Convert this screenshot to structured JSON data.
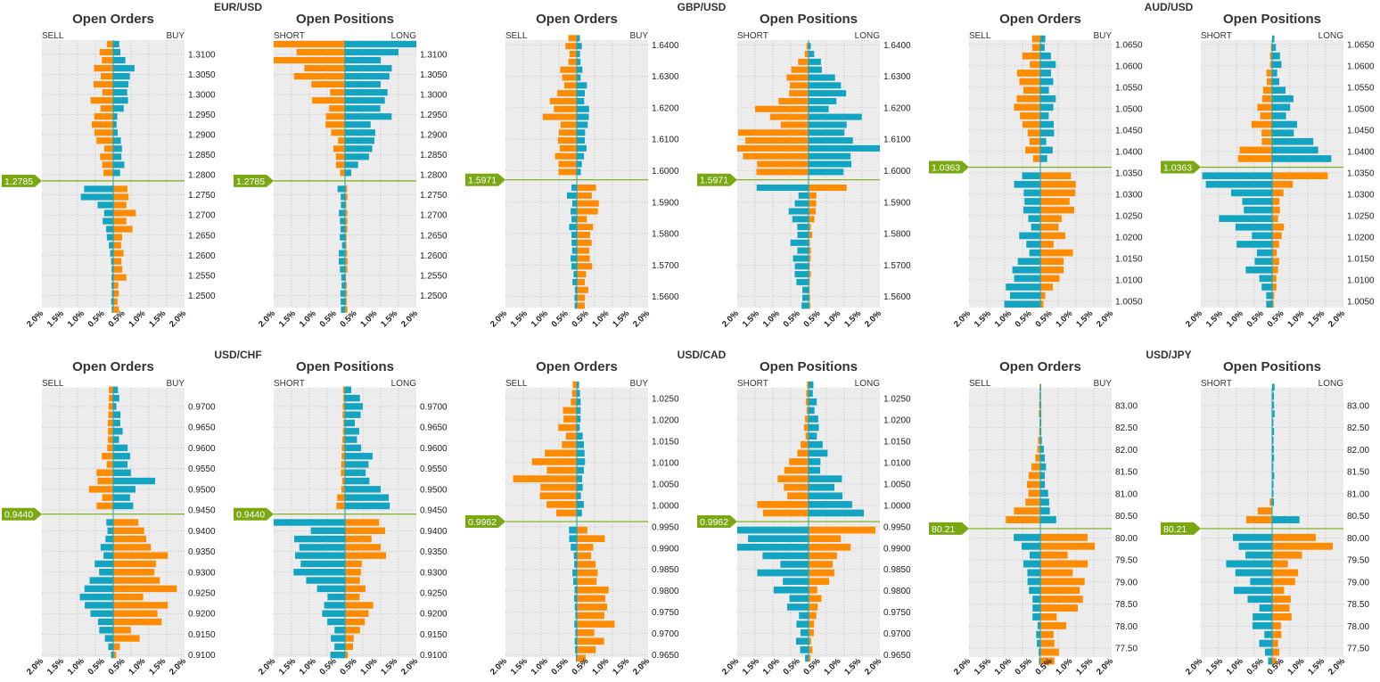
{
  "colors": {
    "orange": "#ff8c00",
    "teal": "#12a4c0",
    "green": "#7aa813",
    "panel_bg": "#ececec"
  },
  "labels": {
    "orders_title": "Open Orders",
    "positions_title": "Open Positions",
    "sell": "SELL",
    "buy": "BUY",
    "short": "SHORT",
    "long": "LONG"
  },
  "xticks": [
    "2.0%",
    "1.5%",
    "1.0%",
    "0.5%",
    "0.5%",
    "1.0%",
    "1.5%",
    "2.0%"
  ],
  "chart_data": [
    {
      "pair": "EUR/USD",
      "current_price": "1.2785",
      "price": 1.2785,
      "ylim": [
        1.247,
        1.3135
      ],
      "step": 0.002,
      "ticks": [
        "1.3100",
        "1.3050",
        "1.3000",
        "1.2950",
        "1.2900",
        "1.2850",
        "1.2800",
        "1.2750",
        "1.2700",
        "1.2650",
        "1.2600",
        "1.2550",
        "1.2500"
      ],
      "orders_shape": {
        "above": [
          [
            0,
            0.2,
            0.25
          ],
          [
            0.45,
            0.5,
            0.12
          ],
          [
            0.75,
            0.45,
            0.55
          ],
          [
            1,
            0.25,
            0.2
          ]
        ],
        "below": [
          [
            0,
            1.2,
            0.35
          ],
          [
            0.2,
            0.3,
            0.5
          ],
          [
            0.6,
            0.05,
            0.3
          ],
          [
            1,
            0.05,
            0.2
          ]
        ]
      },
      "positions_shape": {
        "above": [
          [
            0,
            0.1,
            0.1
          ],
          [
            0.3,
            0.35,
            0.8
          ],
          [
            0.7,
            0.8,
            1.1
          ],
          [
            0.9,
            1.8,
            1.0
          ],
          [
            1,
            2.0,
            2.0
          ]
        ],
        "below": [
          [
            0,
            2.0,
            2.0
          ],
          [
            0.03,
            0.2,
            0.05
          ],
          [
            1,
            0.1,
            0.05
          ]
        ]
      }
    },
    {
      "pair": "GBP/USD",
      "current_price": "1.5971",
      "price": 1.5971,
      "ylim": [
        1.5565,
        1.6415
      ],
      "step": 0.0025,
      "ticks": [
        "1.6400",
        "1.6300",
        "1.6200",
        "1.6100",
        "1.6000",
        "1.5900",
        "1.5800",
        "1.5700",
        "1.5600"
      ],
      "orders_shape": {
        "above": [
          [
            0,
            0.4,
            0.15
          ],
          [
            0.4,
            0.7,
            0.3
          ],
          [
            0.7,
            0.5,
            0.2
          ],
          [
            1,
            0.2,
            0.1
          ]
        ],
        "below": [
          [
            0,
            0.2,
            0.6
          ],
          [
            0.4,
            0.2,
            0.3
          ],
          [
            0.8,
            0.1,
            0.4
          ],
          [
            1,
            0.05,
            0.2
          ]
        ]
      },
      "positions_shape": {
        "above": [
          [
            0,
            1.2,
            1.0
          ],
          [
            0.2,
            1.8,
            1.5
          ],
          [
            0.6,
            0.8,
            0.8
          ],
          [
            0.9,
            0.1,
            0.1
          ],
          [
            1,
            0.0,
            0.0
          ]
        ],
        "below": [
          [
            0,
            2.0,
            2.0
          ],
          [
            0.1,
            0.5,
            0.2
          ],
          [
            0.5,
            0.4,
            0.05
          ],
          [
            1,
            0.2,
            0.05
          ]
        ]
      }
    },
    {
      "pair": "AUD/USD",
      "current_price": "1.0363",
      "price": 1.0363,
      "ylim": [
        1.0035,
        1.066
      ],
      "step": 0.002,
      "ticks": [
        "1.0650",
        "1.0600",
        "1.0550",
        "1.0500",
        "1.0450",
        "1.0400",
        "1.0350",
        "1.0300",
        "1.0250",
        "1.0200",
        "1.0150",
        "1.0100",
        "1.0050"
      ],
      "orders_shape": {
        "above": [
          [
            0,
            0.3,
            0.2
          ],
          [
            0.5,
            0.6,
            0.4
          ],
          [
            0.8,
            0.5,
            0.3
          ],
          [
            1,
            0.2,
            0.1
          ]
        ],
        "below": [
          [
            0,
            0.6,
            0.9
          ],
          [
            0.3,
            0.4,
            0.8
          ],
          [
            0.7,
            0.5,
            0.6
          ],
          [
            1,
            0.8,
            0.1
          ]
        ]
      },
      "positions_shape": {
        "above": [
          [
            0,
            1.0,
            2.0
          ],
          [
            0.2,
            0.5,
            1.0
          ],
          [
            0.6,
            0.2,
            0.3
          ],
          [
            1,
            0.0,
            0.1
          ]
        ],
        "below": [
          [
            0,
            2.0,
            2.0
          ],
          [
            0.2,
            1.4,
            0.3
          ],
          [
            0.6,
            0.8,
            0.2
          ],
          [
            1,
            0.2,
            0.05
          ]
        ]
      }
    },
    {
      "pair": "USD/CHF",
      "current_price": "0.9440",
      "price": 0.944,
      "ylim": [
        0.9095,
        0.9745
      ],
      "step": 0.002,
      "ticks": [
        "0.9700",
        "0.9650",
        "0.9600",
        "0.9550",
        "0.9500",
        "0.9450",
        "0.9400",
        "0.9350",
        "0.9300",
        "0.9250",
        "0.9200",
        "0.9150",
        "0.9100"
      ],
      "orders_shape": {
        "above": [
          [
            0,
            0.5,
            0.4
          ],
          [
            0.2,
            0.5,
            1.0
          ],
          [
            0.5,
            0.2,
            0.3
          ],
          [
            1,
            0.1,
            0.1
          ]
        ],
        "below": [
          [
            0,
            0.2,
            0.6
          ],
          [
            0.3,
            0.3,
            1.2
          ],
          [
            0.7,
            0.8,
            1.3
          ],
          [
            1,
            0.05,
            0.1
          ]
        ]
      },
      "positions_shape": {
        "above": [
          [
            0,
            0.2,
            2.0
          ],
          [
            0.3,
            0.1,
            0.6
          ],
          [
            0.7,
            0.05,
            0.5
          ],
          [
            1,
            0.05,
            0.3
          ]
        ],
        "below": [
          [
            0,
            2.0,
            1.5
          ],
          [
            0.3,
            1.3,
            0.9
          ],
          [
            0.7,
            0.6,
            0.5
          ],
          [
            1,
            0.3,
            0.1
          ]
        ]
      }
    },
    {
      "pair": "USD/CAD",
      "current_price": "0.9962",
      "price": 0.9962,
      "ylim": [
        0.9645,
        1.0275
      ],
      "step": 0.002,
      "ticks": [
        "1.0250",
        "1.0200",
        "1.0150",
        "1.0100",
        "1.0050",
        "1.0000",
        "0.9950",
        "0.9900",
        "0.9850",
        "0.9800",
        "0.9750",
        "0.9700",
        "0.9650"
      ],
      "orders_shape": {
        "above": [
          [
            0,
            0.3,
            0.2
          ],
          [
            0.3,
            1.4,
            0.2
          ],
          [
            0.6,
            0.5,
            0.15
          ],
          [
            1,
            0.1,
            0.05
          ]
        ],
        "below": [
          [
            0,
            0.2,
            0.5
          ],
          [
            0.3,
            0.1,
            0.6
          ],
          [
            0.7,
            0.05,
            1.0
          ],
          [
            1,
            0.05,
            0.3
          ]
        ]
      },
      "positions_shape": {
        "above": [
          [
            0,
            1.5,
            1.2
          ],
          [
            0.2,
            0.8,
            0.8
          ],
          [
            0.6,
            0.1,
            0.3
          ],
          [
            1,
            0.05,
            0.1
          ]
        ],
        "below": [
          [
            0,
            2.0,
            1.8
          ],
          [
            0.3,
            1.2,
            0.6
          ],
          [
            0.7,
            0.4,
            0.2
          ],
          [
            1,
            0.15,
            0.05
          ]
        ]
      }
    },
    {
      "pair": "USD/JPY",
      "current_price": "80.21",
      "price": 80.21,
      "ylim": [
        77.3,
        83.4
      ],
      "step": 0.2,
      "ticks": [
        "83.00",
        "82.50",
        "82.00",
        "81.50",
        "81.00",
        "80.50",
        "80.00",
        "79.50",
        "79.00",
        "78.50",
        "78.00",
        "77.50"
      ],
      "orders_shape": {
        "above": [
          [
            0,
            0.8,
            0.4
          ],
          [
            0.3,
            0.3,
            0.2
          ],
          [
            0.6,
            0.05,
            0.05
          ],
          [
            1,
            0.02,
            0.02
          ]
        ],
        "below": [
          [
            0,
            0.6,
            2.0
          ],
          [
            0.3,
            0.3,
            1.0
          ],
          [
            0.7,
            0.15,
            0.8
          ],
          [
            1,
            0.05,
            0.3
          ]
        ]
      },
      "positions_shape": {
        "above": [
          [
            0,
            2.0,
            2.0
          ],
          [
            0.1,
            0.6,
            0.0
          ],
          [
            0.2,
            0.0,
            0.05
          ],
          [
            1,
            0.0,
            0.05
          ]
        ],
        "below": [
          [
            0,
            2.0,
            1.8
          ],
          [
            0.3,
            1.0,
            0.6
          ],
          [
            0.7,
            0.5,
            0.4
          ],
          [
            1,
            0.1,
            0.1
          ]
        ]
      }
    }
  ]
}
